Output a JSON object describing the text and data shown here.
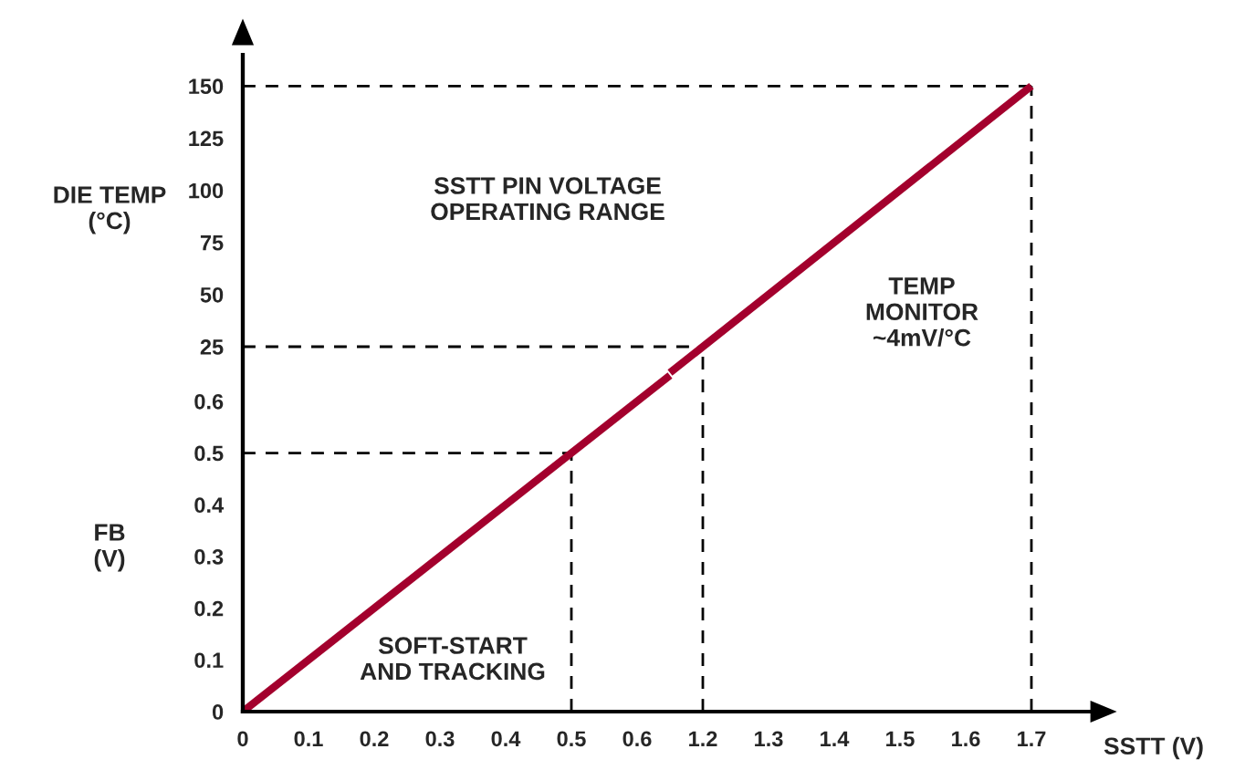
{
  "chart_data": [
    {
      "type": "line",
      "ylabel": "FB\n(V)",
      "annotations": [
        "SOFT-START\nAND TRACKING"
      ],
      "series": [
        {
          "color": "#a3002d",
          "x": [
            0,
            0.65
          ],
          "values": [
            0,
            0.65
          ]
        }
      ],
      "xlim": [
        0,
        1.3
      ],
      "ylim": [
        0,
        1.27
      ],
      "xticks": [
        0,
        0.1,
        0.2,
        0.3,
        0.4,
        0.5,
        0.6
      ],
      "yticks": [
        0,
        0.1,
        0.2,
        0.3,
        0.4,
        0.5,
        0.6
      ],
      "ref_lines": [
        {
          "axis": "y",
          "value": 0.5,
          "line_style": "dashed"
        },
        {
          "axis": "x",
          "value": 0.5,
          "line_style": "dashed"
        }
      ],
      "grid": false
    },
    {
      "type": "line",
      "xlabel": "SSTT (V)",
      "ylabel": "DIE TEMP\n(°C)",
      "annotations": [
        "SSTT PIN VOLTAGE\nOPERATING RANGE",
        "TEMP\nMONITOR\n~4mV/°C"
      ],
      "series": [
        {
          "color": "#a3002d",
          "x": [
            1.15,
            1.7
          ],
          "values": [
            12.5,
            150
          ]
        }
      ],
      "xlim": [
        0.5,
        1.8
      ],
      "ylim": [
        -150,
        165
      ],
      "xticks": [
        1.2,
        1.3,
        1.4,
        1.5,
        1.6,
        1.7
      ],
      "yticks": [
        25,
        50,
        75,
        100,
        125,
        150
      ],
      "ref_lines": [
        {
          "axis": "y",
          "value": 25,
          "line_style": "dashed"
        },
        {
          "axis": "x",
          "value": 1.2,
          "line_style": "dashed"
        },
        {
          "axis": "y",
          "value": 150,
          "line_style": "dashed"
        },
        {
          "axis": "x",
          "value": 1.7,
          "line_style": "dashed"
        }
      ],
      "grid": false
    }
  ]
}
